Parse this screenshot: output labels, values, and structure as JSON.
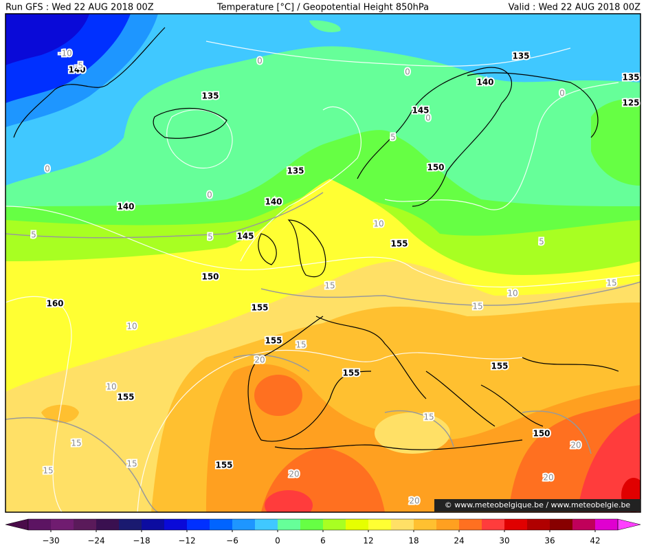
{
  "header": {
    "left": "Run GFS : Wed 22 AUG 2018 00Z",
    "center": "Temperature [°C] / Geopotential Height 850hPa",
    "right": "Valid : Wed 22 AUG 2018 00Z"
  },
  "height_labels": [
    "140",
    "135",
    "135",
    "125",
    "140",
    "135",
    "145",
    "150",
    "135",
    "140",
    "140",
    "145",
    "155",
    "150",
    "160",
    "155",
    "155",
    "155",
    "155",
    "155",
    "150",
    "155"
  ],
  "temperature_labels": [
    "-10",
    "-5",
    "0",
    "0",
    "0",
    "0",
    "5",
    "0",
    "0",
    "10",
    "5",
    "5",
    "5",
    "15",
    "15",
    "10",
    "15",
    "10",
    "15",
    "20",
    "10",
    "15",
    "15",
    "20",
    "15",
    "15",
    "20",
    "20",
    "20"
  ],
  "colorbar": {
    "lim": [
      -36,
      48
    ],
    "colors": [
      "#4a0c4a",
      "#5c1462",
      "#701c70",
      "#5a1a5a",
      "#3a1050",
      "#1a1a70",
      "#0c0ca0",
      "#0a0ad8",
      "#0030ff",
      "#0064ff",
      "#1e96ff",
      "#40c8ff",
      "#66ff99",
      "#66ff44",
      "#a8ff22",
      "#e6ff00",
      "#ffff33",
      "#ffe066",
      "#ffc030",
      "#ffa020",
      "#ff7020",
      "#ff3c3c",
      "#e00000",
      "#b00000",
      "#880000",
      "#c0005a",
      "#e000d0",
      "#ff40ff"
    ],
    "ticks": [
      {
        "value": -30,
        "label": "−30"
      },
      {
        "value": -24,
        "label": "−24"
      },
      {
        "value": -18,
        "label": "−18"
      },
      {
        "value": -12,
        "label": "−12"
      },
      {
        "value": -6,
        "label": "−6"
      },
      0,
      6,
      12,
      18,
      24,
      30,
      36,
      42
    ]
  },
  "watermark": "© www.meteobelgique.be / www.meteobelgie.be"
}
